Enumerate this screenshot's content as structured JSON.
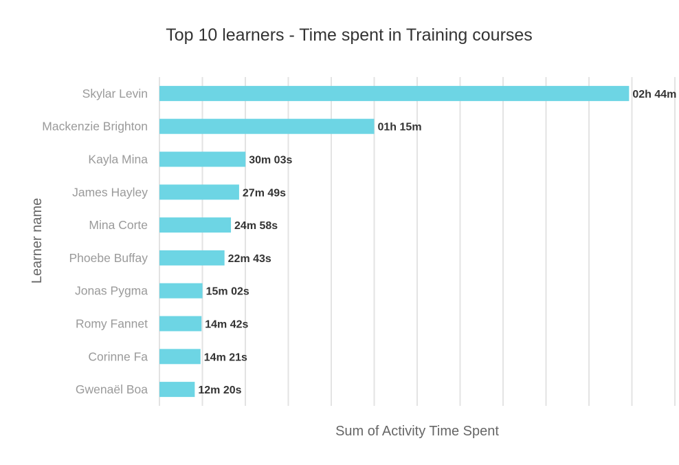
{
  "chart_data": {
    "type": "bar",
    "orientation": "horizontal",
    "title": "Top 10 learners - Time spent in Training courses",
    "xlabel": "Sum of Activity Time Spent",
    "ylabel": "Learner name",
    "bar_color": "#6dd5e4",
    "grid": true,
    "xlim_minutes": [
      0,
      180
    ],
    "x_grid_step_minutes": 15,
    "categories": [
      "Skylar Levin",
      "Mackenzie Brighton",
      "Kayla Mina",
      "James Hayley",
      "Mina Corte",
      "Phoebe Buffay",
      "Jonas Pygma",
      "Romy Fannet",
      "Corinne Fa",
      "Gwenaël Boa"
    ],
    "values_minutes": [
      164,
      75,
      30.05,
      27.82,
      24.97,
      22.72,
      15.03,
      14.7,
      14.35,
      12.33
    ],
    "value_labels": [
      "02h 44m",
      "01h 15m",
      "30m 03s",
      "27m 49s",
      "24m 58s",
      "22m 43s",
      "15m 02s",
      "14m 42s",
      "14m 21s",
      "12m 20s"
    ]
  }
}
